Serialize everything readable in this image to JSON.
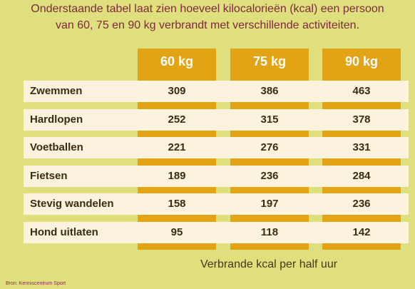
{
  "header": {
    "intro": [
      "Onderstaande tabel laat zien hoeveel kilocalorieën (kcal) een persoon",
      "van 60, 75 en 90 kg verbrandt met verschillende activiteiten."
    ]
  },
  "table": {
    "columns": [
      "60 kg",
      "75 kg",
      "90 kg"
    ],
    "rows": [
      [
        "Zwemmen",
        "309",
        "386",
        "463"
      ],
      [
        "Hardlopen",
        "252",
        "315",
        "378"
      ],
      [
        "Voetballen",
        "221",
        "276",
        "331"
      ],
      [
        "Fietsen",
        "189",
        "236",
        "284"
      ],
      [
        "Stevig wandelen",
        "158",
        "197",
        "236"
      ],
      [
        "Hond uitlaten",
        "95",
        "118",
        "142"
      ]
    ]
  },
  "footer": {
    "caption": "Verbrande kcal per half uur",
    "source": "Bron: Kenniscentrum Sport"
  }
}
